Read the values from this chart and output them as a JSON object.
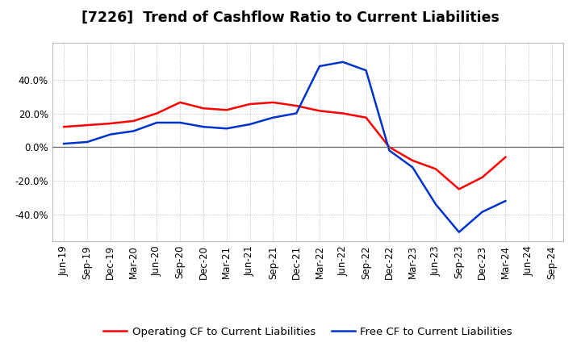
{
  "title": "[7226]  Trend of Cashflow Ratio to Current Liabilities",
  "x_labels": [
    "Jun-19",
    "Sep-19",
    "Dec-19",
    "Mar-20",
    "Jun-20",
    "Sep-20",
    "Dec-20",
    "Mar-21",
    "Jun-21",
    "Sep-21",
    "Dec-21",
    "Mar-22",
    "Jun-22",
    "Sep-22",
    "Dec-22",
    "Mar-23",
    "Jun-23",
    "Sep-23",
    "Dec-23",
    "Mar-24",
    "Jun-24",
    "Sep-24"
  ],
  "operating_cf": [
    0.12,
    0.13,
    0.14,
    0.155,
    0.2,
    0.265,
    0.23,
    0.22,
    0.255,
    0.265,
    0.245,
    0.215,
    0.2,
    0.175,
    0.0,
    -0.08,
    -0.13,
    -0.25,
    -0.18,
    -0.06,
    null,
    null
  ],
  "free_cf": [
    0.02,
    0.03,
    0.075,
    0.095,
    0.145,
    0.145,
    0.12,
    0.11,
    0.135,
    0.175,
    0.2,
    0.48,
    0.505,
    0.455,
    -0.02,
    -0.12,
    -0.34,
    -0.505,
    -0.385,
    -0.32,
    null,
    null
  ],
  "ylim": [
    -0.56,
    0.62
  ],
  "yticks": [
    -0.4,
    -0.2,
    0.0,
    0.2,
    0.4
  ],
  "operating_color": "#FF0000",
  "free_color": "#0033CC",
  "background_color": "#FFFFFF",
  "plot_background": "#FFFFFF",
  "grid_color": "#999999",
  "title_fontsize": 12.5,
  "legend_fontsize": 9.5,
  "tick_fontsize": 8.5
}
